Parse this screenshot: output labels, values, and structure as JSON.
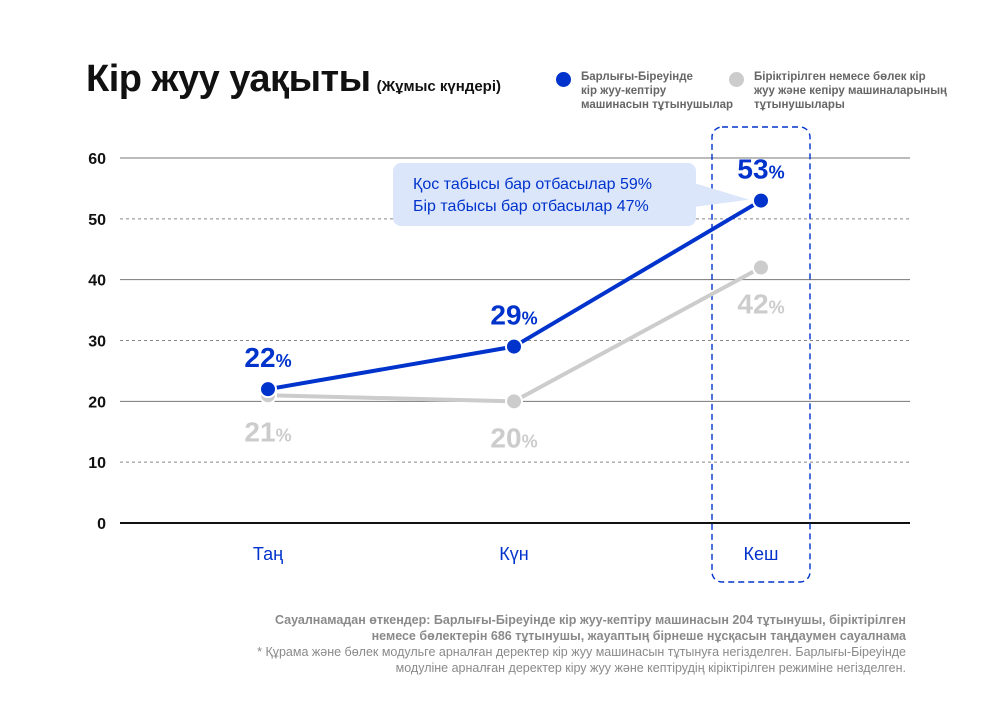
{
  "title": "Кір жуу уақыты",
  "subtitle": "(Жұмыс күндері)",
  "legend": [
    {
      "label": "Барлығы-Біреуінде\nкір жуу-кептіру\nмашинасын тұтынушылар",
      "color": "#0033cc"
    },
    {
      "label": "Біріктірілген немесе бөлек кір\nжуу және кепіру машиналарының\nтұтынушылары",
      "color": "#cccccc"
    }
  ],
  "callout": {
    "lines": [
      "Қос табысы бар отбасылар 59%",
      "Бір табысы бар отбасылар 47%"
    ]
  },
  "footnote": {
    "respondents": "Сауалнамадан өткендер: Барлығы-Біреуінде кір жуу-кептіру машинасын  204 тұтынушы, біріктірілген\nнемесе бөлектерін 686 тұтынушы, жауаптың бірнеше  нұсқасын таңдаумен сауалнама",
    "note": "* Құрама және бөлек модульге арналған деректер кір жуу машинасын тұтынуға негізделген. Барлығы-Біреуінде\nмодуліне арналған деректер кіру жуу және кептірудің кіріктірілген режиміне негізделген."
  },
  "chart_data": {
    "type": "line",
    "title": "Кір жуу уақыты",
    "subtitle": "(Жұмыс күндері)",
    "categories": [
      "Таң",
      "Күн",
      "Кеш"
    ],
    "ylim": [
      0,
      60
    ],
    "yticks": [
      0,
      10,
      20,
      30,
      40,
      50,
      60
    ],
    "grid": true,
    "legend_position": "top-right",
    "highlighted_category": "Кеш",
    "series": [
      {
        "name": "Барлығы-Біреуінде кір жуу-кептіру машинасын тұтынушылар",
        "values": [
          22,
          29,
          53
        ],
        "color": "#0033cc",
        "labels": [
          "22%",
          "29%",
          "53%"
        ],
        "label_position": "above"
      },
      {
        "name": "Біріктірілген немесе бөлек кір жуу және кепіру машиналарының тұтынушылары",
        "values": [
          21,
          20,
          42
        ],
        "color": "#cccccc",
        "labels": [
          "21%",
          "20%",
          "42%"
        ],
        "label_position": "below"
      }
    ]
  }
}
